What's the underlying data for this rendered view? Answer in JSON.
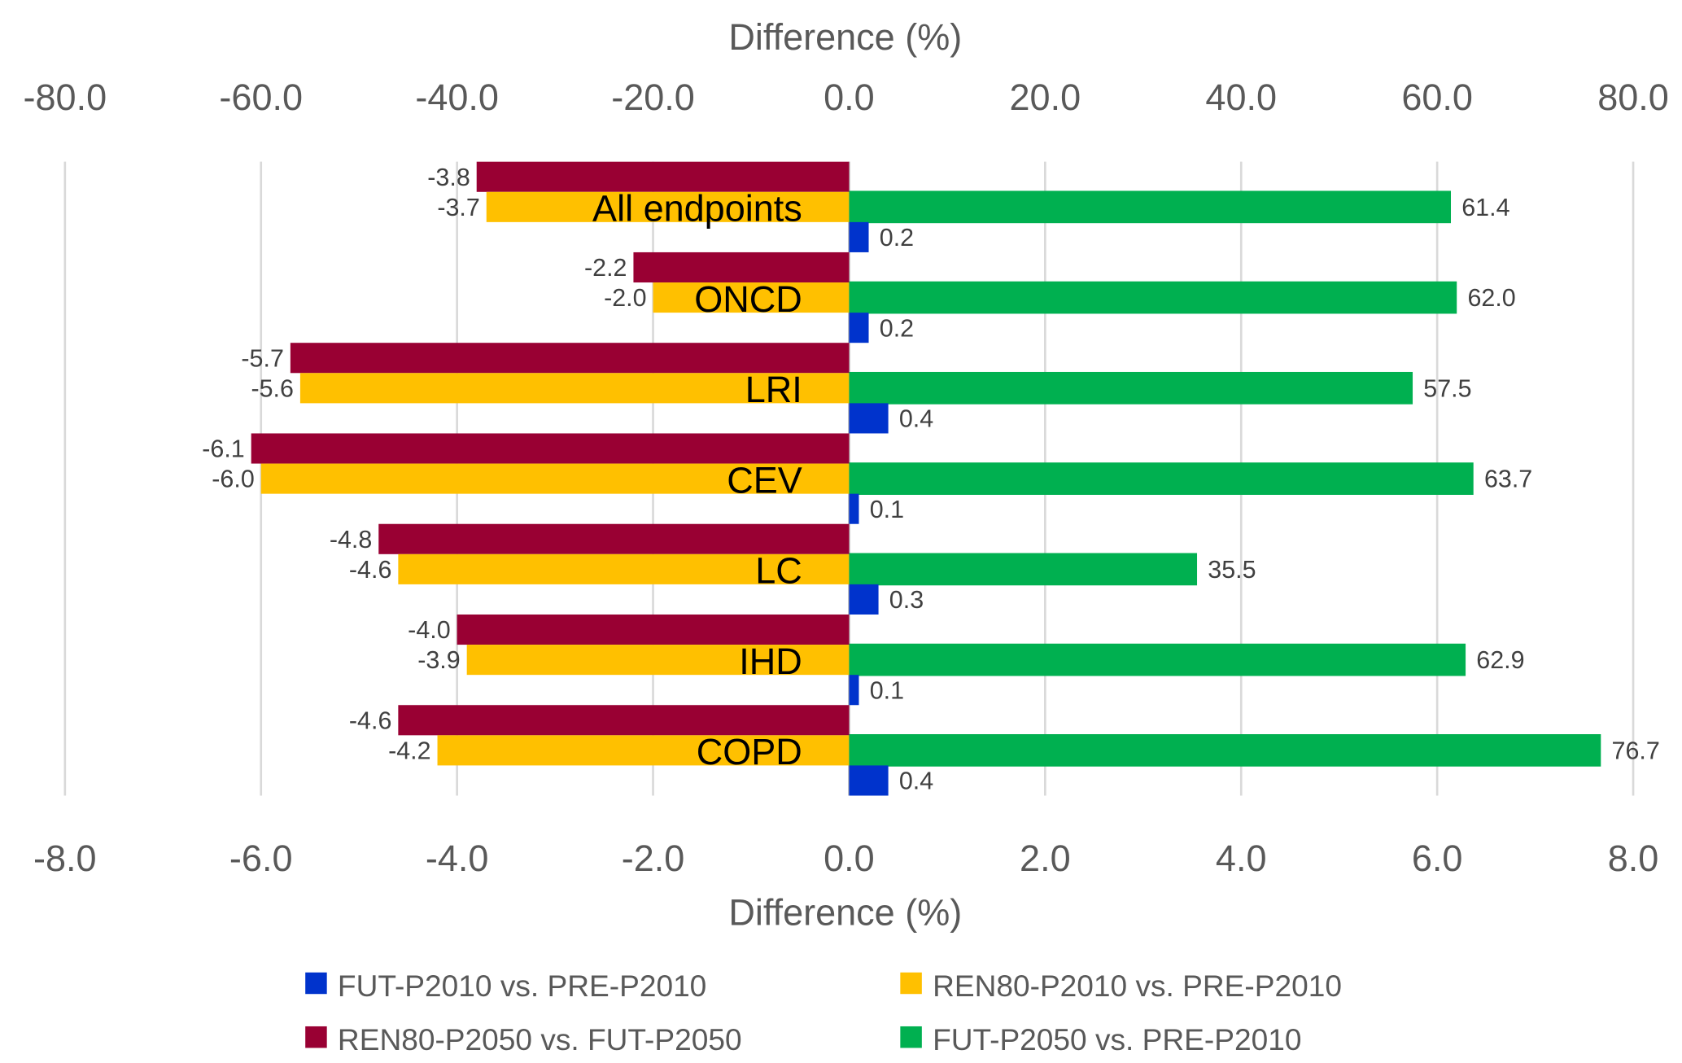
{
  "chart_data": {
    "type": "bar",
    "orientation": "horizontal",
    "categories": [
      "All endpoints",
      "ONCD",
      "LRI",
      "CEV",
      "LC",
      "IHD",
      "COPD"
    ],
    "series": [
      {
        "name": "REN80-P2050 vs. FUT-P2050",
        "color": "#990033",
        "axis": "primary",
        "values": [
          -3.8,
          -2.2,
          -5.7,
          -6.1,
          -4.8,
          -4.0,
          -4.6
        ],
        "labels": [
          "-3.8",
          "-2.2",
          "-5.7",
          "-6.1",
          "-4.8",
          "-4.0",
          "-4.6"
        ]
      },
      {
        "name": "REN80-P2010 vs. PRE-P2010",
        "color": "#FFC000",
        "axis": "primary",
        "values": [
          -3.7,
          -2.0,
          -5.6,
          -6.0,
          -4.6,
          -3.9,
          -4.2
        ],
        "labels": [
          "-3.7",
          "-2.0",
          "-5.6",
          "-6.0",
          "-4.6",
          "-3.9",
          "-4.2"
        ]
      },
      {
        "name": "FUT-P2050 vs. PRE-P2010",
        "color": "#00B050",
        "axis": "secondary",
        "values": [
          61.4,
          62.0,
          57.5,
          63.7,
          35.5,
          62.9,
          76.7
        ],
        "labels": [
          "61.4",
          "62.0",
          "57.5",
          "63.7",
          "35.5",
          "62.9",
          "76.7"
        ]
      },
      {
        "name": "FUT-P2010 vs. PRE-P2010",
        "color": "#0033CC",
        "axis": "primary",
        "values": [
          0.2,
          0.2,
          0.4,
          0.1,
          0.3,
          0.1,
          0.4
        ],
        "labels": [
          "0.2",
          "0.2",
          "0.4",
          "0.1",
          "0.3",
          "0.1",
          "0.4"
        ]
      }
    ],
    "primary_axis": {
      "title": "Difference (%)",
      "range": [
        -8,
        8
      ],
      "ticks": [
        "-8.0",
        "-6.0",
        "-4.0",
        "-2.0",
        "0.0",
        "2.0",
        "4.0",
        "6.0",
        "8.0"
      ],
      "position": "bottom"
    },
    "secondary_axis": {
      "title": "Difference (%)",
      "range": [
        -80,
        80
      ],
      "ticks": [
        "-80.0",
        "-60.0",
        "-40.0",
        "-20.0",
        "0.0",
        "20.0",
        "40.0",
        "60.0",
        "80.0"
      ],
      "position": "top"
    },
    "grid": true,
    "legend": {
      "position": "bottom",
      "order": [
        "FUT-P2010 vs. PRE-P2010",
        "REN80-P2010 vs. PRE-P2010",
        "REN80-P2050 vs. FUT-P2050",
        "FUT-P2050 vs. PRE-P2010"
      ]
    }
  }
}
